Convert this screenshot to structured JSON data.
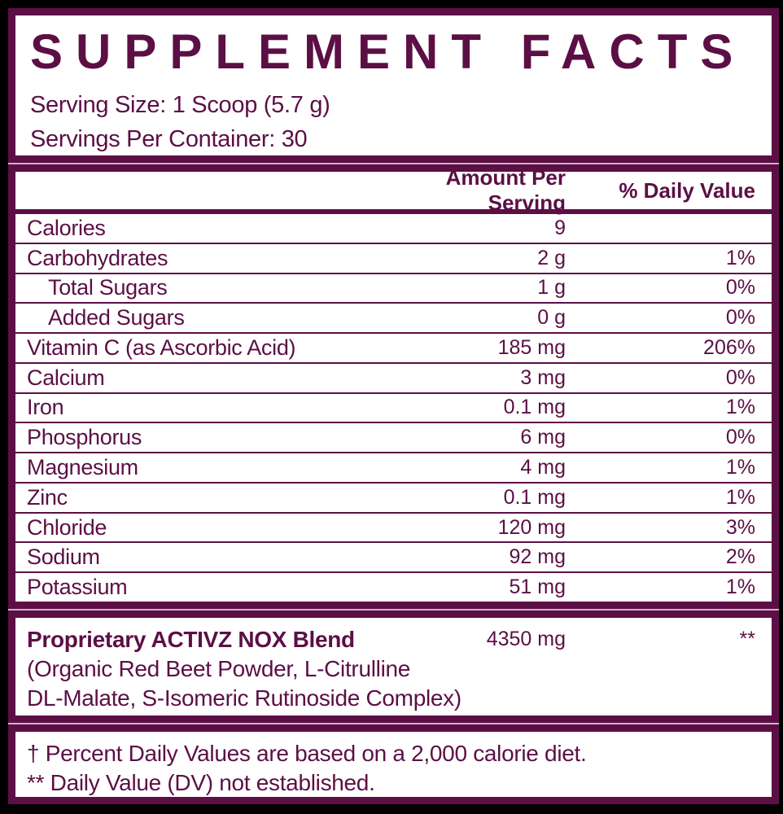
{
  "colors": {
    "plum": "#5C0F45",
    "paper": "#FFFFFF",
    "background": "#000000",
    "seam": "#CDB4C5"
  },
  "header": {
    "title": "SUPPLEMENT FACTS",
    "serving_size": "Serving Size: 1 Scoop (5.7 g)",
    "servings_per_container": "Servings Per Container: 30"
  },
  "table": {
    "columns": {
      "amount": "Amount Per Serving",
      "daily_value": "% Daily Value"
    },
    "rows": [
      {
        "name": "Calories",
        "amount": "9",
        "dv": "",
        "indent": false
      },
      {
        "name": "Carbohydrates",
        "amount": "2 g",
        "dv": "1%",
        "indent": false
      },
      {
        "name": "Total Sugars",
        "amount": "1 g",
        "dv": "0%",
        "indent": true
      },
      {
        "name": "Added Sugars",
        "amount": "0 g",
        "dv": "0%",
        "indent": true
      },
      {
        "name": "Vitamin C (as Ascorbic Acid)",
        "amount": "185 mg",
        "dv": "206%",
        "indent": false
      },
      {
        "name": "Calcium",
        "amount": "3 mg",
        "dv": "0%",
        "indent": false
      },
      {
        "name": "Iron",
        "amount": "0.1 mg",
        "dv": "1%",
        "indent": false
      },
      {
        "name": "Phosphorus",
        "amount": "6 mg",
        "dv": "0%",
        "indent": false
      },
      {
        "name": "Magnesium",
        "amount": "4 mg",
        "dv": "1%",
        "indent": false
      },
      {
        "name": "Zinc",
        "amount": "0.1 mg",
        "dv": "1%",
        "indent": false
      },
      {
        "name": "Chloride",
        "amount": "120 mg",
        "dv": "3%",
        "indent": false
      },
      {
        "name": "Sodium",
        "amount": "92 mg",
        "dv": "2%",
        "indent": false
      },
      {
        "name": "Potassium",
        "amount": "51 mg",
        "dv": "1%",
        "indent": false
      }
    ]
  },
  "blend": {
    "name": "Proprietary ACTIVZ NOX Blend",
    "amount": "4350 mg",
    "dv": "**",
    "description_line1": "(Organic Red Beet Powder, L-Citrulline",
    "description_line2": "DL-Malate, S-Isomeric Rutinoside Complex)"
  },
  "footnotes": {
    "line1": "† Percent Daily Values are based on a 2,000 calorie diet.",
    "line2": "** Daily Value (DV) not established."
  }
}
